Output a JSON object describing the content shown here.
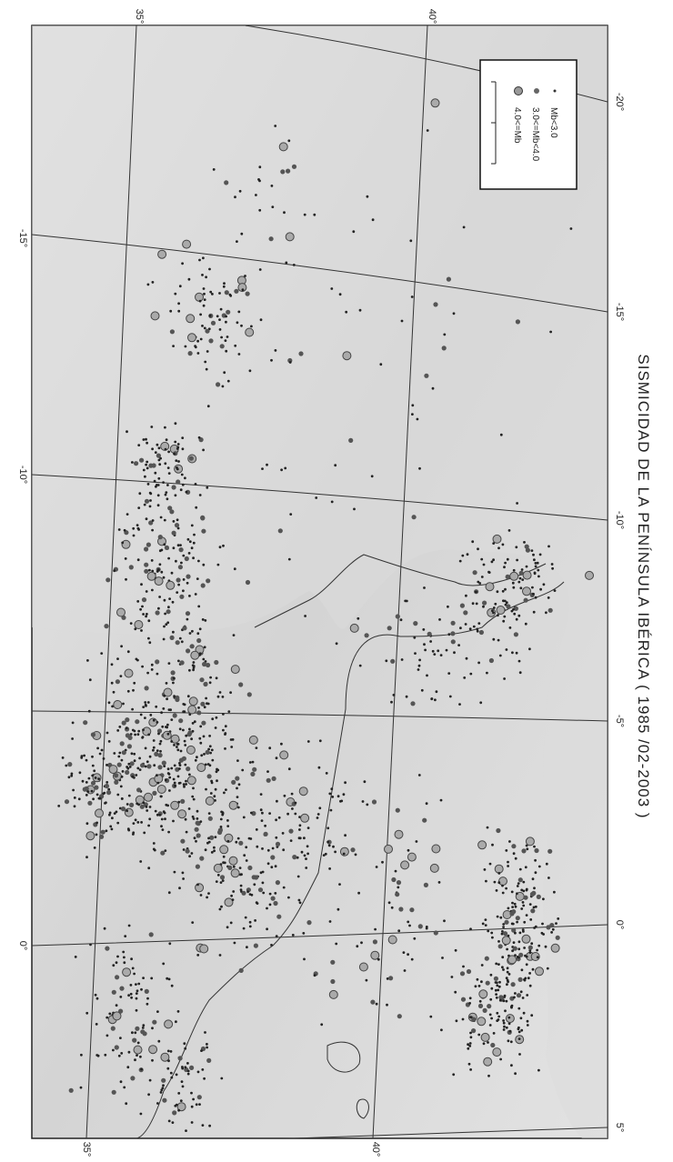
{
  "title": "SISMICIDAD DE LA PENÍNSULA IBÉRICA ( 1985 /02-2003 )",
  "legend": [
    "Mb<3.0",
    "3.0<=Mb<4.0",
    "4.0<=Mb"
  ],
  "graticule": {
    "top_labels": [
      "35°",
      "40°"
    ],
    "bottom_labels": [
      "35°",
      "40°"
    ],
    "right_labels": [
      "-20°",
      "-15°",
      "-10°",
      "-5°",
      "0°",
      "5°"
    ],
    "left_labels": [
      "-15°",
      "-10°",
      "0°"
    ]
  }
}
